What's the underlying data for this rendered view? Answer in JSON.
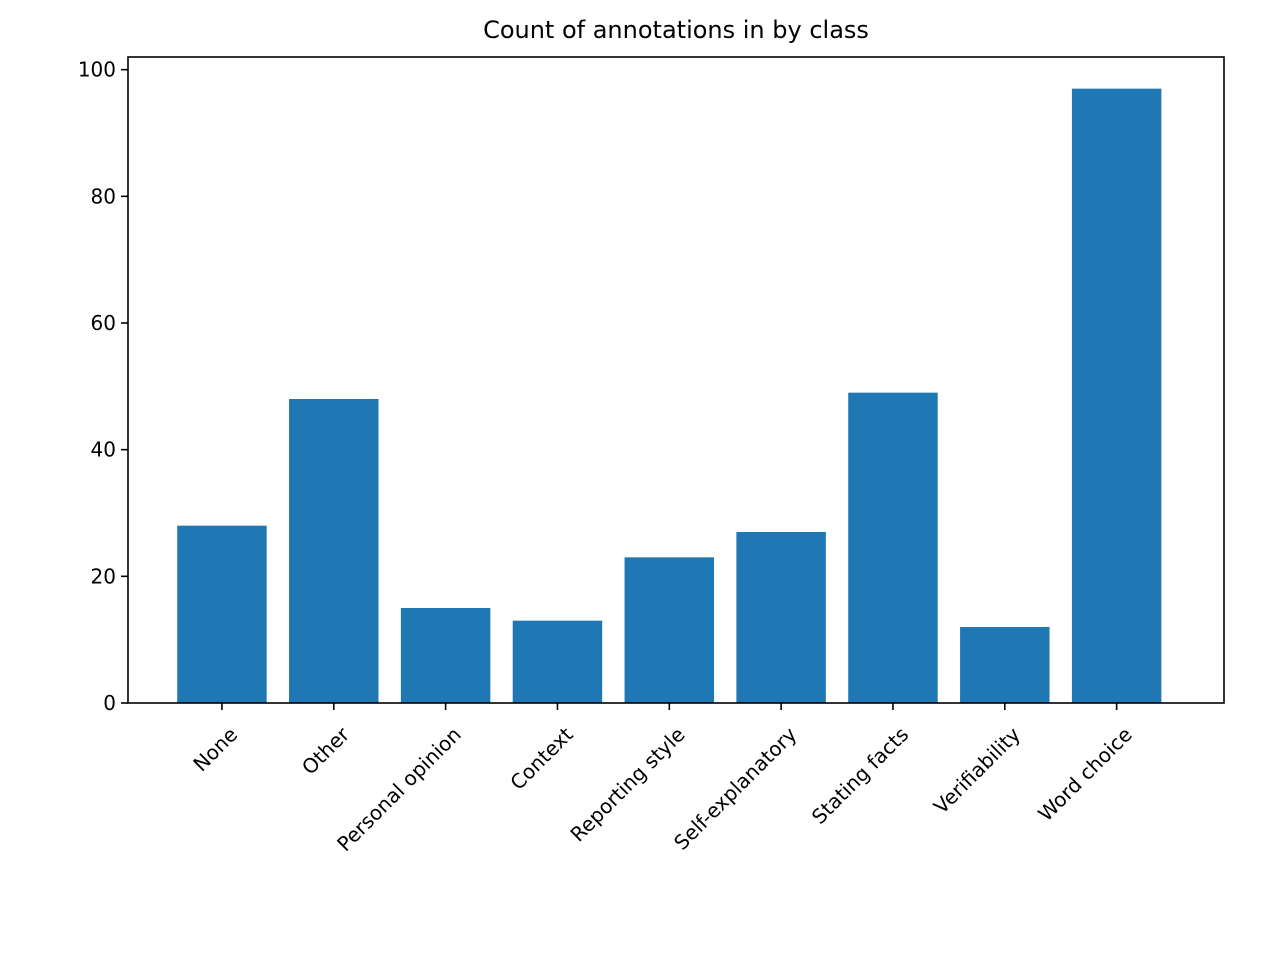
{
  "chart_data": {
    "type": "bar",
    "title": "Count of annotations in by class",
    "xlabel": "",
    "ylabel": "",
    "categories": [
      "None",
      "Other",
      "Personal opinion",
      "Context",
      "Reporting style",
      "Self-explanatory",
      "Stating facts",
      "Verifiability",
      "Word choice"
    ],
    "values": [
      28,
      48,
      15,
      13,
      23,
      27,
      49,
      12,
      97
    ],
    "ylim": [
      0,
      102
    ],
    "yticks": [
      0,
      20,
      40,
      60,
      80,
      100
    ],
    "bar_color": "#1f77b4",
    "grid": false,
    "legend": "none"
  }
}
